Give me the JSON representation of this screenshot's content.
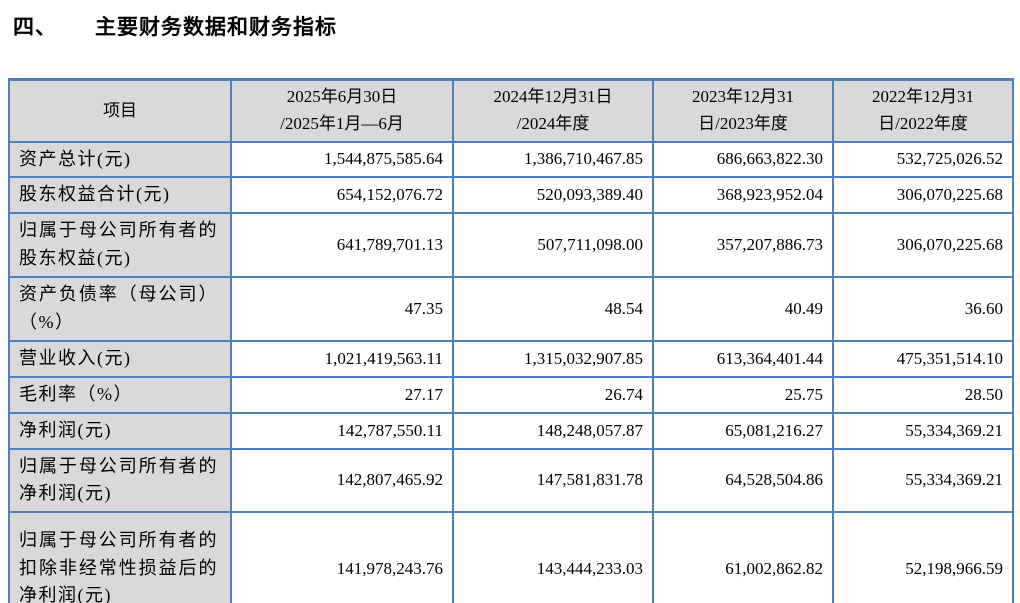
{
  "page": {
    "title_number": "四、",
    "title_text": "主要财务数据和财务指标"
  },
  "table": {
    "columns": [
      "项目",
      "2025年6月30日\n/2025年1月—6月",
      "2024年12月31日\n/2024年度",
      "2023年12月31\n日/2023年度",
      "2022年12月31\n日/2022年度"
    ],
    "rows": [
      {
        "label": "资产总计(元)",
        "values": [
          "1,544,875,585.64",
          "1,386,710,467.85",
          "686,663,822.30",
          "532,725,026.52"
        ]
      },
      {
        "label": "股东权益合计(元)",
        "values": [
          "654,152,076.72",
          "520,093,389.40",
          "368,923,952.04",
          "306,070,225.68"
        ]
      },
      {
        "label": "归属于母公司所有者的股东权益(元)",
        "values": [
          "641,789,701.13",
          "507,711,098.00",
          "357,207,886.73",
          "306,070,225.68"
        ]
      },
      {
        "label": "资产负债率（母公司）（%）",
        "values": [
          "47.35",
          "48.54",
          "40.49",
          "36.60"
        ]
      },
      {
        "label": "营业收入(元)",
        "values": [
          "1,021,419,563.11",
          "1,315,032,907.85",
          "613,364,401.44",
          "475,351,514.10"
        ]
      },
      {
        "label": "毛利率（%）",
        "values": [
          "27.17",
          "26.74",
          "25.75",
          "28.50"
        ]
      },
      {
        "label": "净利润(元)",
        "values": [
          "142,787,550.11",
          "148,248,057.87",
          "65,081,216.27",
          "55,334,369.21"
        ]
      },
      {
        "label": "归属于母公司所有者的净利润(元)",
        "values": [
          "142,807,465.92",
          "147,581,831.78",
          "64,528,504.86",
          "55,334,369.21"
        ]
      },
      {
        "label": "归属于母公司所有者的扣除非经常性损益后的净利润(元)",
        "values": [
          "141,978,243.76",
          "143,444,233.03",
          "61,002,862.82",
          "52,198,966.59"
        ]
      }
    ]
  },
  "colors": {
    "border_blue": "#4F81BD",
    "header_bg": "#D9D9D9",
    "text": "#000000",
    "page_bg": "#FFFFFF"
  }
}
